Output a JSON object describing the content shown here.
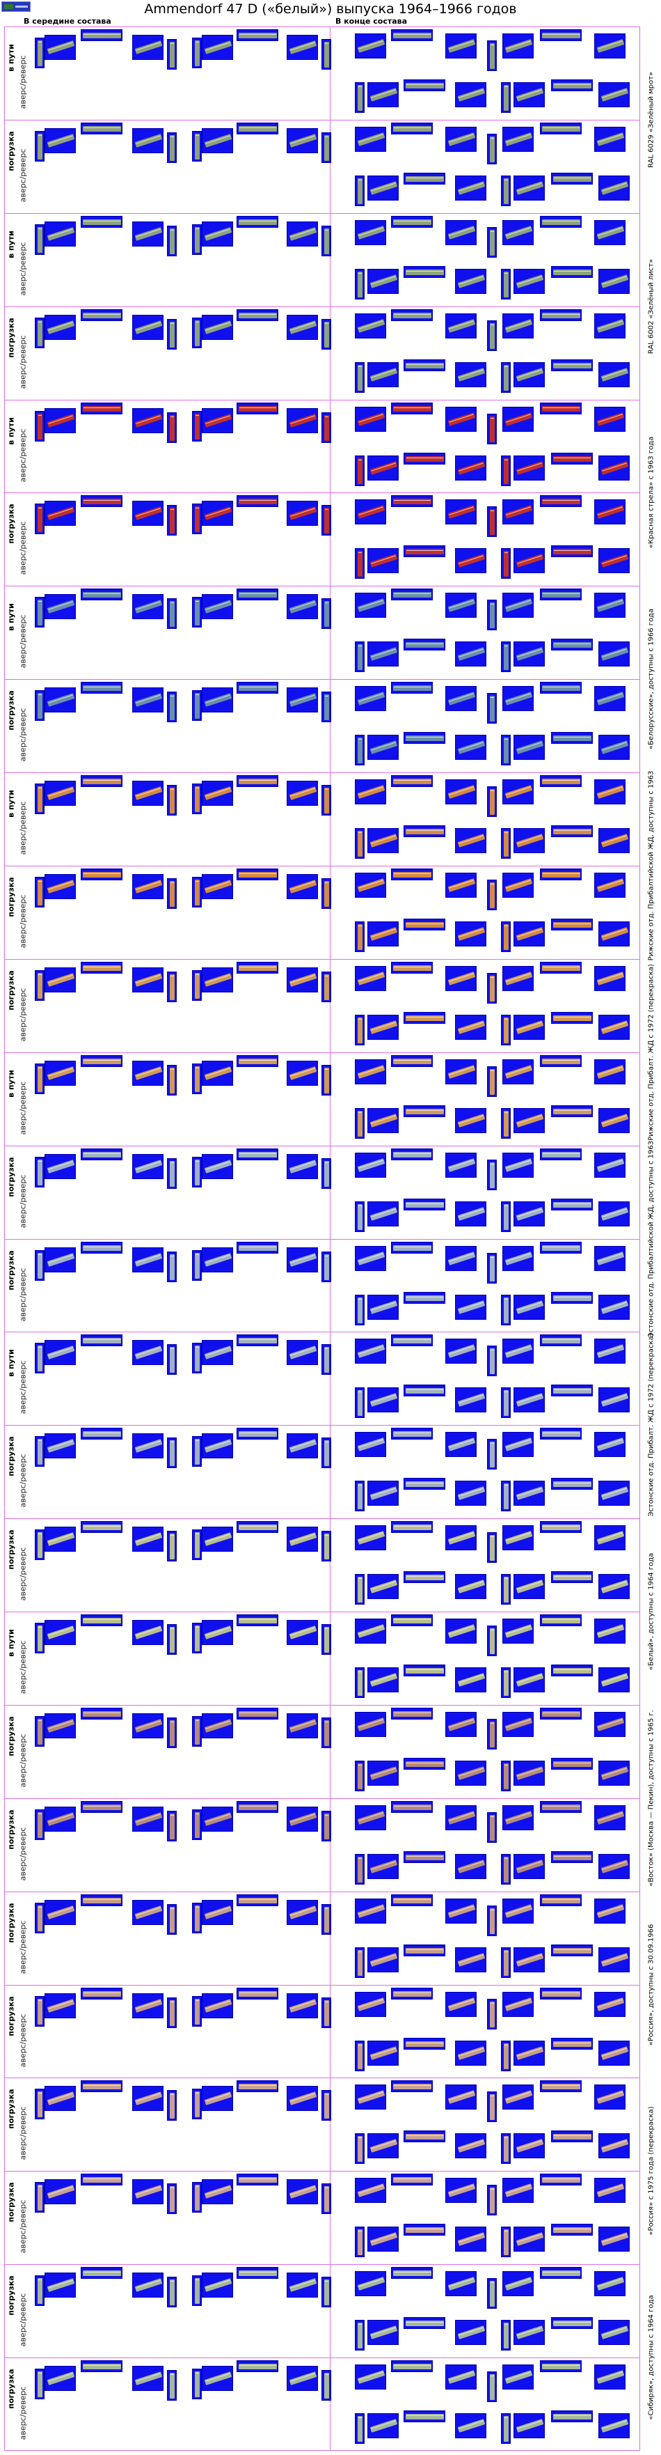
{
  "page": {
    "title": "Ammendorf 47 D («белый») выпуска 1964–1966 годов",
    "col_middle": "В середине состава",
    "col_end": "В конце состава"
  },
  "labels": {
    "in_transit": "в пути",
    "loading": "погрузка",
    "reverse": "аверс/реверс"
  },
  "colors": {
    "panel_bg": "#1010ee",
    "grid_line": "#e070e0"
  },
  "bands": [
    {
      "livery": "RAL 6029 «Зелёный мрот»",
      "car_color": "#8fa07a",
      "rows": [
        {
          "label": "в пути"
        },
        {
          "label": "погрузка"
        }
      ]
    },
    {
      "livery": "RAL 6002 «Зелёный лист»",
      "car_color": "#8da27f",
      "rows": [
        {
          "label": "в пути"
        },
        {
          "label": "погрузка"
        }
      ]
    },
    {
      "livery": "«Красная стрела» с 1963 года",
      "car_color": "#c0302a",
      "rows": [
        {
          "label": "в пути"
        },
        {
          "label": "погрузка"
        }
      ]
    },
    {
      "livery": "«Белорусские», доступны с 1966 года",
      "car_color": "#6a8faa",
      "rows": [
        {
          "label": "в пути"
        },
        {
          "label": "погрузка"
        }
      ]
    },
    {
      "livery": "Рижские отд. Прибалтийской ЖД, доступны с 1963",
      "car_color": "#d28a44",
      "rows": [
        {
          "label": "в пути"
        },
        {
          "label": "погрузка"
        }
      ]
    },
    {
      "livery": "Рижские отд. Прибалт. ЖД с 1972 (перекраска)",
      "car_color": "#cf9a58",
      "rows": [
        {
          "label": "погрузка"
        },
        {
          "label": "в пути"
        }
      ]
    },
    {
      "livery": "Эстонские отд. Прибалтийской ЖД, доступны с 1963",
      "car_color": "#9fb1c3",
      "rows": [
        {
          "label": "погрузка"
        },
        {
          "label": "погрузка"
        }
      ]
    },
    {
      "livery": "Эстонские отд. Прибалт. ЖД с 1972 (перекраска)",
      "car_color": "#a3b0bf",
      "rows": [
        {
          "label": "в пути"
        },
        {
          "label": "погрузка"
        }
      ]
    },
    {
      "livery": "«Белый», доступны с 1964 года",
      "car_color": "#b7bd8e",
      "rows": [
        {
          "label": "погрузка"
        },
        {
          "label": "в пути"
        }
      ]
    },
    {
      "livery": "«Восток» (Москва — Пекин), доступны с 1965 г.",
      "car_color": "#b58b7a",
      "rows": [
        {
          "label": "погрузка"
        },
        {
          "label": "погрузка"
        }
      ]
    },
    {
      "livery": "«Россия», доступны с 30.09.1966",
      "car_color": "#c49d86",
      "rows": [
        {
          "label": "погрузка"
        },
        {
          "label": "погрузка"
        }
      ]
    },
    {
      "livery": "«Россия» с 1975 года (перекраска)",
      "car_color": "#c7a190",
      "rows": [
        {
          "label": "погрузка"
        },
        {
          "label": "погрузка"
        }
      ]
    },
    {
      "livery": "«Сибиряк», доступны с 1964 года",
      "car_color": "#a6b79a",
      "rows": [
        {
          "label": "погрузка"
        },
        {
          "label": "погрузка"
        }
      ]
    }
  ]
}
